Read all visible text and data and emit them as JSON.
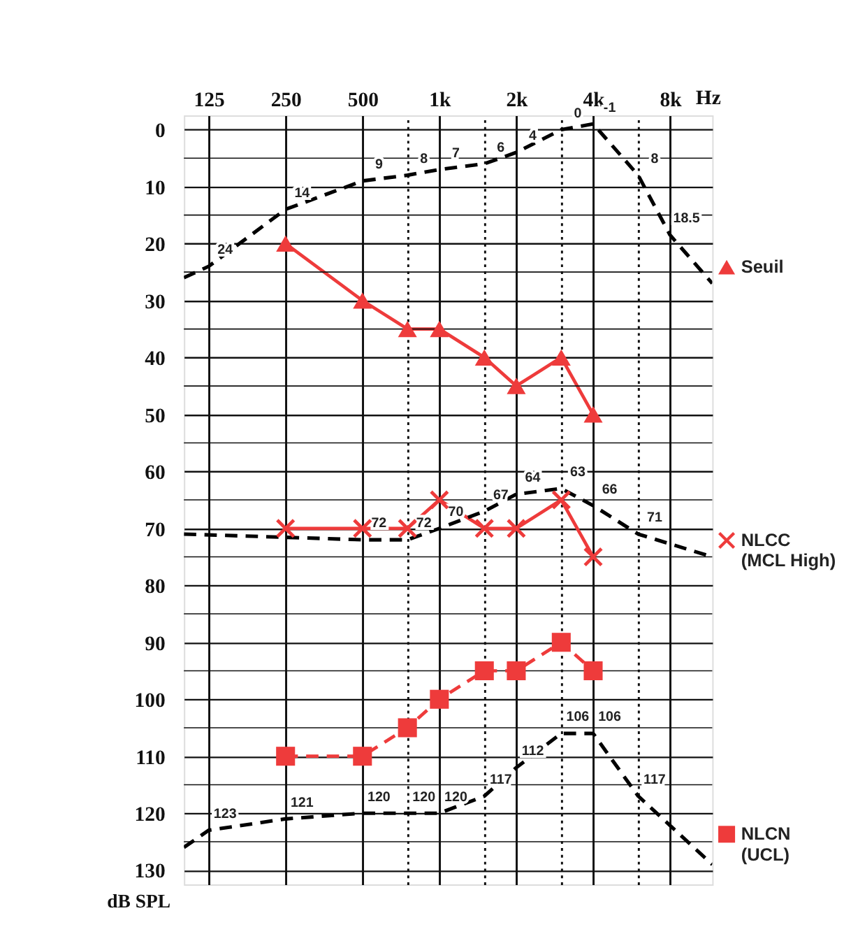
{
  "chart_data": {
    "type": "line",
    "xlabel": "Hz",
    "ylabel": "dB SPL",
    "log": "x",
    "x": [
      250,
      500,
      750,
      1000,
      1500,
      2000,
      3000,
      4000
    ],
    "series": [
      {
        "name": "Seuil",
        "color": "#ee3b3b",
        "marker": "triangle",
        "line_style": "solid",
        "values": [
          20,
          30,
          35,
          35,
          40,
          45,
          40,
          50
        ]
      },
      {
        "name": "NLCC (MCL High)",
        "color": "#ee3b3b",
        "marker": "cross",
        "line_style": "solid",
        "values": [
          70,
          70,
          70,
          65,
          70,
          70,
          65,
          75
        ]
      },
      {
        "name": "NLCN (UCL)",
        "color": "#ee3b3b",
        "marker": "square",
        "line_style": "dashed",
        "values": [
          110,
          110,
          105,
          100,
          95,
          95,
          90,
          95
        ]
      },
      {
        "color": "#000000",
        "marker": "none",
        "line_style": "dashed",
        "x": [
          100,
          125,
          250,
          500,
          750,
          1000,
          1500,
          2000,
          3000,
          4000,
          6000,
          8000,
          11700
        ],
        "values": [
          26,
          24,
          14,
          9,
          8,
          7,
          6,
          4,
          0,
          -1,
          8,
          18.5,
          27
        ],
        "value_labels": [
          null,
          "24",
          "14",
          "9",
          "8",
          "7",
          "6",
          "4",
          "0",
          "-1",
          "8",
          "18.5",
          null
        ]
      },
      {
        "color": "#000000",
        "marker": "none",
        "line_style": "dashed",
        "x": [
          100,
          500,
          750,
          1000,
          1500,
          2000,
          3000,
          4000,
          6000,
          11700
        ],
        "values": [
          71,
          72,
          72,
          70,
          67,
          64,
          63,
          66,
          71,
          75
        ],
        "value_labels": [
          null,
          "72",
          "72",
          "70",
          "67",
          "64",
          "63",
          "66",
          "71",
          null
        ]
      },
      {
        "color": "#000000",
        "marker": "none",
        "line_style": "dashed",
        "x": [
          100,
          125,
          250,
          500,
          750,
          1000,
          1500,
          2000,
          3000,
          4000,
          6000,
          11700
        ],
        "values": [
          126,
          123,
          121,
          120,
          120,
          120,
          117,
          112,
          106,
          106,
          117,
          129
        ],
        "value_labels": [
          null,
          "123",
          "121",
          "120",
          "120",
          "120",
          "117",
          "112",
          "106",
          "106",
          "117",
          null
        ]
      }
    ],
    "xlim": [
      100,
      11700
    ],
    "xticks": [
      125,
      250,
      500,
      {
        "value": 750,
        "label": null
      },
      {
        "value": 1000,
        "label": "1k"
      },
      {
        "value": 1500,
        "label": null
      },
      {
        "value": 2000,
        "label": "2k"
      },
      {
        "value": 3000,
        "label": null
      },
      {
        "value": 4000,
        "label": "4k"
      },
      {
        "value": 6000,
        "label": null
      },
      {
        "value": 8000,
        "label": "8k"
      }
    ],
    "ylim": [
      132.5,
      -2.5
    ],
    "yticks": [
      0,
      {
        "value": 5,
        "label": null
      },
      10,
      {
        "value": 15,
        "label": null
      },
      20,
      {
        "value": 25,
        "label": null
      },
      30,
      {
        "value": 35,
        "label": null
      },
      40,
      {
        "value": 45,
        "label": null
      },
      50,
      {
        "value": 55,
        "label": null
      },
      60,
      {
        "value": 65,
        "label": null
      },
      70,
      {
        "value": 75,
        "label": null
      },
      80,
      {
        "value": 85,
        "label": null
      },
      90,
      {
        "value": 95,
        "label": null
      },
      100,
      {
        "value": 105,
        "label": null
      },
      110,
      {
        "value": 115,
        "label": null
      },
      120,
      {
        "value": 125,
        "label": null
      },
      130
    ],
    "grid": true,
    "legend": "right"
  }
}
